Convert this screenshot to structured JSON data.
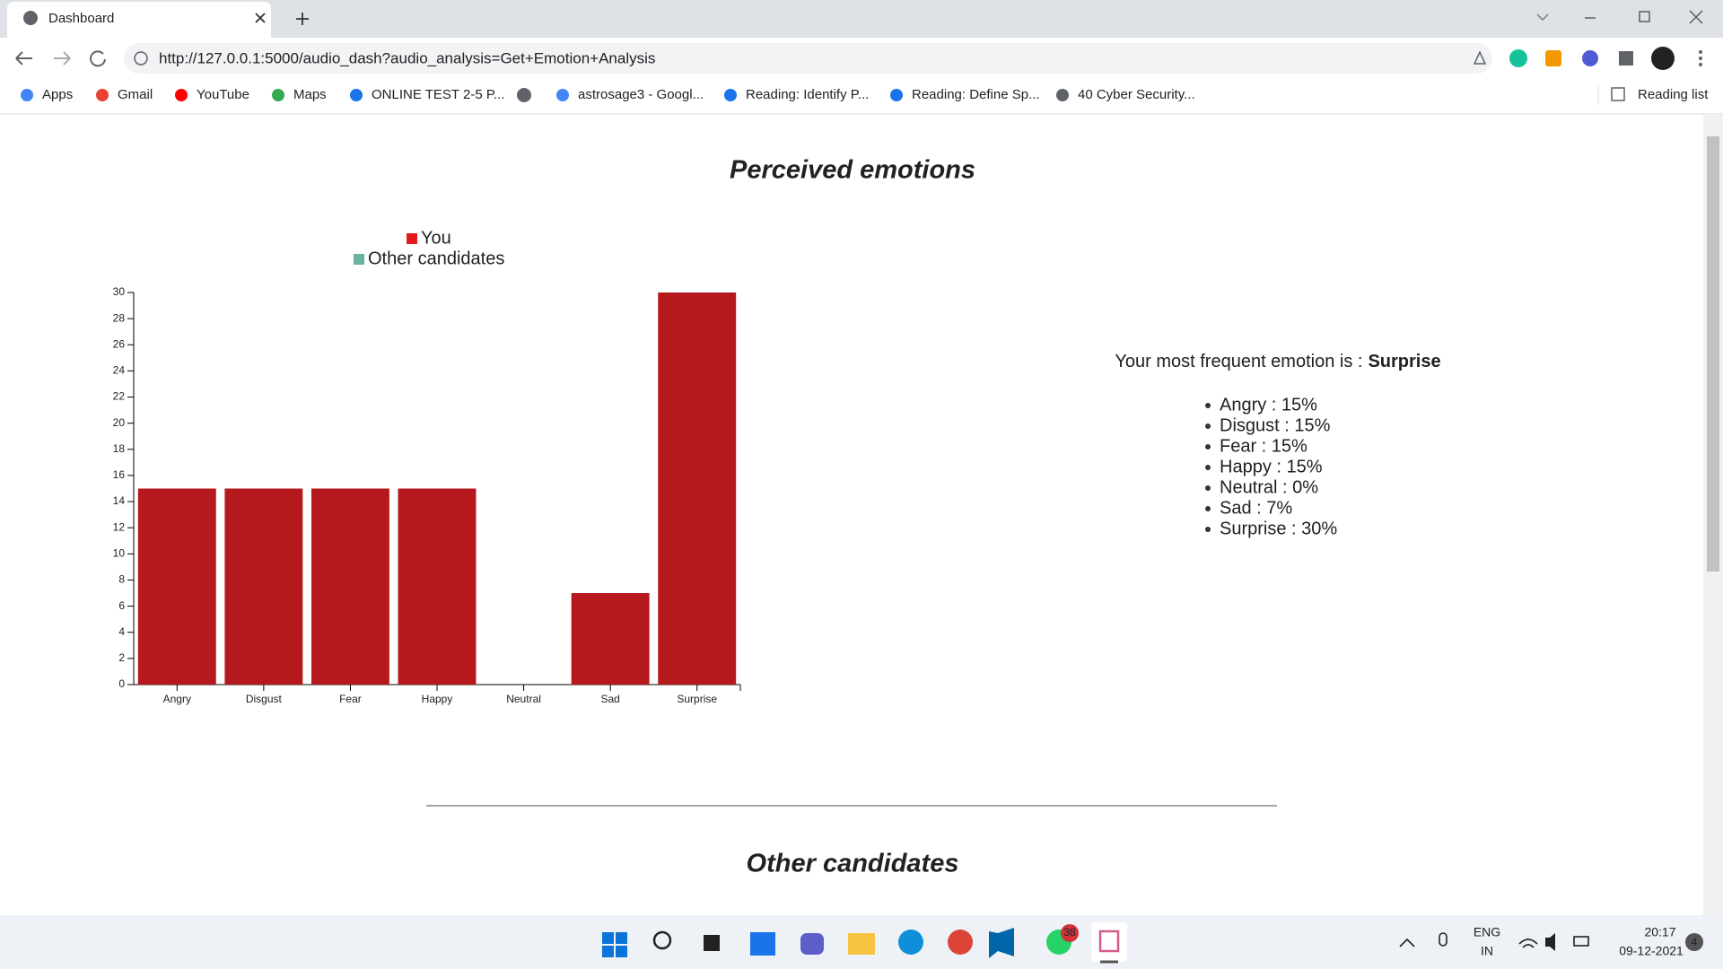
{
  "browser": {
    "tab_title": "Dashboard",
    "url": "http://127.0.0.1:5000/audio_dash?audio_analysis=Get+Emotion+Analysis",
    "bookmarks": [
      "Apps",
      "Gmail",
      "YouTube",
      "Maps",
      "ONLINE TEST 2-5 P...",
      "astrosage3 - Googl...",
      "Reading: Identify P...",
      "Reading: Define Sp...",
      "40 Cyber Security..."
    ],
    "reading_list": "Reading list"
  },
  "page": {
    "title": "Perceived emotions",
    "summary": {
      "label": "Your most frequent emotion is :",
      "emotion": "Surprise"
    },
    "summary_items": [
      "Angry : 15%",
      "Disgust : 15%",
      "Fear : 15%",
      "Happy : 15%",
      "Neutral : 0%",
      "Sad : 7%",
      "Surprise : 30%"
    ],
    "second_heading": "Other candidates"
  },
  "chart_data": {
    "type": "bar",
    "legend": [
      {
        "label": "You",
        "color": "#e41a1c"
      },
      {
        "label": "Other candidates",
        "color": "#69b3a2"
      }
    ],
    "categories": [
      "Angry",
      "Disgust",
      "Fear",
      "Happy",
      "Neutral",
      "Sad",
      "Surprise"
    ],
    "values": [
      15,
      15,
      15,
      15,
      0,
      7,
      30
    ],
    "color": "#b5191d",
    "ylim": [
      0,
      30
    ],
    "yticks": [
      0,
      2,
      4,
      6,
      8,
      10,
      12,
      14,
      16,
      18,
      20,
      22,
      24,
      26,
      28,
      30
    ]
  },
  "taskbar": {
    "whatsapp_badge": "38",
    "language": "ENG",
    "region": "IN",
    "time": "20:17",
    "date": "09-12-2021",
    "notifications": "4"
  }
}
